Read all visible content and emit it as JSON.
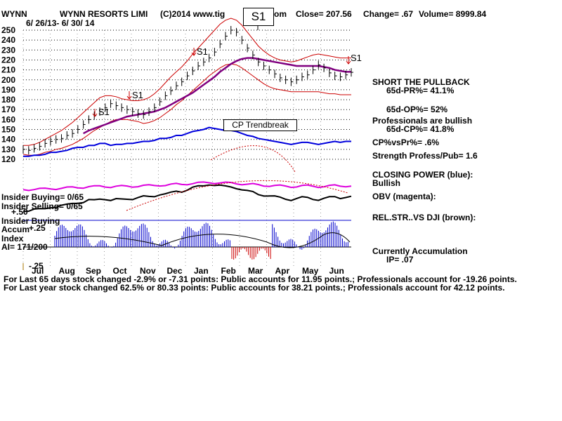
{
  "header": {
    "ticker": "WYNN",
    "name": "WYNN RESORTS LIMI",
    "copyright": "(C)2014 www.tig",
    "copyright_tail": "om",
    "close": "Close=  207.56",
    "change": "Change= .67",
    "volume": "Volume= 8999.84",
    "dates": "6/ 26/13-  6/ 30/ 14"
  },
  "signals": {
    "main": "S1",
    "s1_label": "S1",
    "trendbreak": "CP Trendbreak"
  },
  "right_panel": {
    "line1": "SHORT THE PULLBACK",
    "line2": "65d-PR%= 41.1%",
    "line3": "65d-OP%= 52%",
    "line4": "Professionals are bullish",
    "line5": "65d-CP%= 41.8%",
    "line6": "CP%vsPr%=  .6%",
    "line7": "Strength Profess/Pub= 1.6",
    "line8": "CLOSING POWER (blue):",
    "line9": "Bullish",
    "line10": "OBV (magenta):",
    "line11": "REL.STR..VS DJI (brown):",
    "line12": "Currently Accumulation",
    "line13": "IP=  .07"
  },
  "left_panel": {
    "insider_buying": "Insider Buying= 0/65",
    "insider_selling": "Insider Selling= 0/65",
    "plus50": "+.50",
    "insider_buying2": "Insider Buying",
    "accum": "Accum",
    "plus25": "+.25",
    "index": "Index",
    "ai": "AI= 171/200",
    "minus25": "-.25"
  },
  "footer": {
    "line1": "For Last 65 days stock changed -2.9% or -7.31 points:  Public accounts for  11.95 points.;  Professionals account for -19.26 points.",
    "line2": "For Last year stock changed  62.5% or  80.33 points:  Public accounts for  38.21 points.;  Professionals account for  42.12 points."
  },
  "colors": {
    "price": "#000000",
    "bands": "#cc0000",
    "ma": "#800080",
    "closing_power": "#0000dd",
    "obv": "#dd00dd",
    "grid": "#000000",
    "accum": "#0000cc",
    "distrib": "#cc0000"
  },
  "chart_data": {
    "type": "line",
    "y_ticks": [
      250,
      240,
      230,
      220,
      210,
      200,
      190,
      180,
      170,
      160,
      150,
      140,
      130,
      120
    ],
    "ylim": [
      112,
      254
    ],
    "months": [
      "Jul",
      "Aug",
      "Sep",
      "Oct",
      "Nov",
      "Dec",
      "Jan",
      "Feb",
      "Mar",
      "Apr",
      "May",
      "Jun"
    ],
    "price_close": [
      130,
      129,
      131,
      133,
      136,
      138,
      140,
      141,
      144,
      146,
      150,
      155,
      160,
      164,
      168,
      172,
      176,
      174,
      172,
      170,
      168,
      166,
      165,
      168,
      172,
      178,
      184,
      189,
      194,
      198,
      204,
      209,
      214,
      218,
      222,
      228,
      236,
      244,
      250,
      248,
      240,
      232,
      225,
      218,
      214,
      210,
      206,
      202,
      200,
      198,
      200,
      203,
      205,
      210,
      215,
      212,
      207,
      204,
      203,
      205,
      207.56
    ],
    "upper_band": [
      134,
      134,
      135,
      137,
      140,
      143,
      146,
      149,
      153,
      157,
      162,
      167,
      172,
      177,
      182,
      184,
      184,
      183,
      181,
      180,
      179,
      179,
      180,
      182,
      186,
      191,
      197,
      203,
      208,
      213,
      219,
      226,
      232,
      238,
      244,
      250,
      256,
      260,
      262,
      260,
      255,
      248,
      241,
      234,
      229,
      225,
      222,
      220,
      219,
      218,
      219,
      221,
      223,
      225,
      226,
      225,
      224,
      223,
      222,
      222,
      222
    ],
    "lower_band": [
      125,
      124,
      124,
      125,
      127,
      128,
      130,
      131,
      133,
      135,
      138,
      141,
      145,
      149,
      152,
      155,
      158,
      160,
      160,
      160,
      159,
      158,
      156,
      157,
      159,
      162,
      166,
      170,
      175,
      179,
      184,
      189,
      194,
      199,
      204,
      208,
      212,
      215,
      216,
      215,
      212,
      208,
      204,
      200,
      196,
      193,
      191,
      190,
      189,
      188,
      188,
      188,
      188,
      188,
      188,
      187,
      186,
      186,
      185,
      185,
      185
    ],
    "moving_average": [
      null,
      null,
      null,
      null,
      null,
      null,
      null,
      null,
      null,
      null,
      null,
      146,
      149,
      151,
      153,
      155,
      157,
      159,
      161,
      163,
      164,
      165,
      166,
      167,
      168,
      170,
      172,
      175,
      178,
      181,
      184,
      187,
      191,
      195,
      199,
      203,
      208,
      212,
      216,
      219,
      221,
      222,
      222,
      221,
      220,
      219,
      218,
      217,
      216,
      215,
      214,
      214,
      214,
      214,
      214,
      213,
      212,
      210,
      209,
      208,
      208
    ],
    "closing_power": [
      123,
      123,
      124,
      124,
      125,
      127,
      127,
      128,
      129,
      131,
      132,
      132,
      134,
      134,
      136,
      136,
      134,
      135,
      135,
      136,
      136,
      137,
      138,
      138,
      139,
      141,
      141,
      142,
      144,
      144,
      146,
      148,
      149,
      150,
      152,
      151,
      150,
      149,
      149,
      148,
      146,
      144,
      143,
      141,
      140,
      139,
      138,
      137,
      136,
      135,
      136,
      137,
      137,
      136,
      135,
      136,
      137,
      138,
      137,
      138,
      138
    ]
  }
}
